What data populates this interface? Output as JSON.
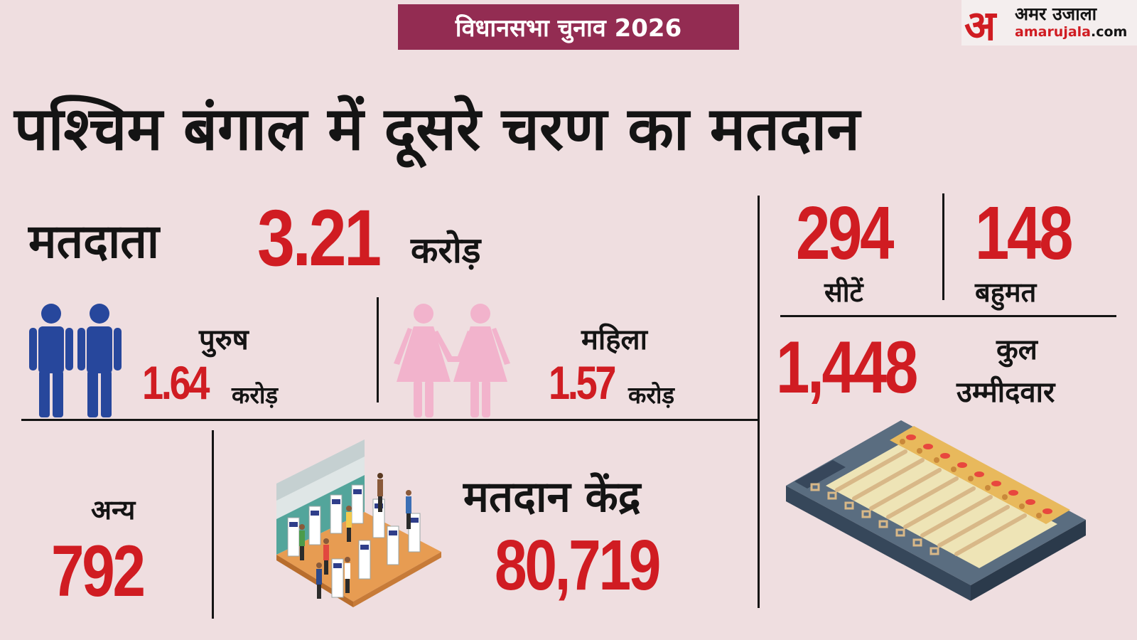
{
  "banner": "विधानसभा चुनाव 2026",
  "logo": {
    "mark": "अ",
    "hindi": "अमर उजाला",
    "url_main": "amarujala",
    "url_tld": ".com"
  },
  "title": "पश्चिम बंगाल में दूसरे चरण का मतदान",
  "voters": {
    "label": "मतदाता",
    "value": "3.21",
    "unit": "करोड़"
  },
  "male": {
    "label": "पुरुष",
    "value": "1.64",
    "unit": "करोड़"
  },
  "female": {
    "label": "महिला",
    "value": "1.57",
    "unit": "करोड़"
  },
  "others": {
    "label": "अन्य",
    "value": "792"
  },
  "polling_centers": {
    "label": "मतदान केंद्र",
    "value": "80,719"
  },
  "seats": {
    "value": "294",
    "label": "सीटें"
  },
  "majority": {
    "value": "148",
    "label": "बहुमत"
  },
  "candidates": {
    "value": "1,448",
    "label_line1": "कुल",
    "label_line2": "उम्मीदवार"
  },
  "colors": {
    "background": "#efdee0",
    "banner": "#932c52",
    "accent_red": "#d01c22",
    "male_blue": "#27479c",
    "female_pink": "#f2b3cc"
  },
  "icons": [
    "male-figures-icon",
    "female-figures-icon",
    "polling-booth-illustration",
    "evm-machine-illustration"
  ]
}
